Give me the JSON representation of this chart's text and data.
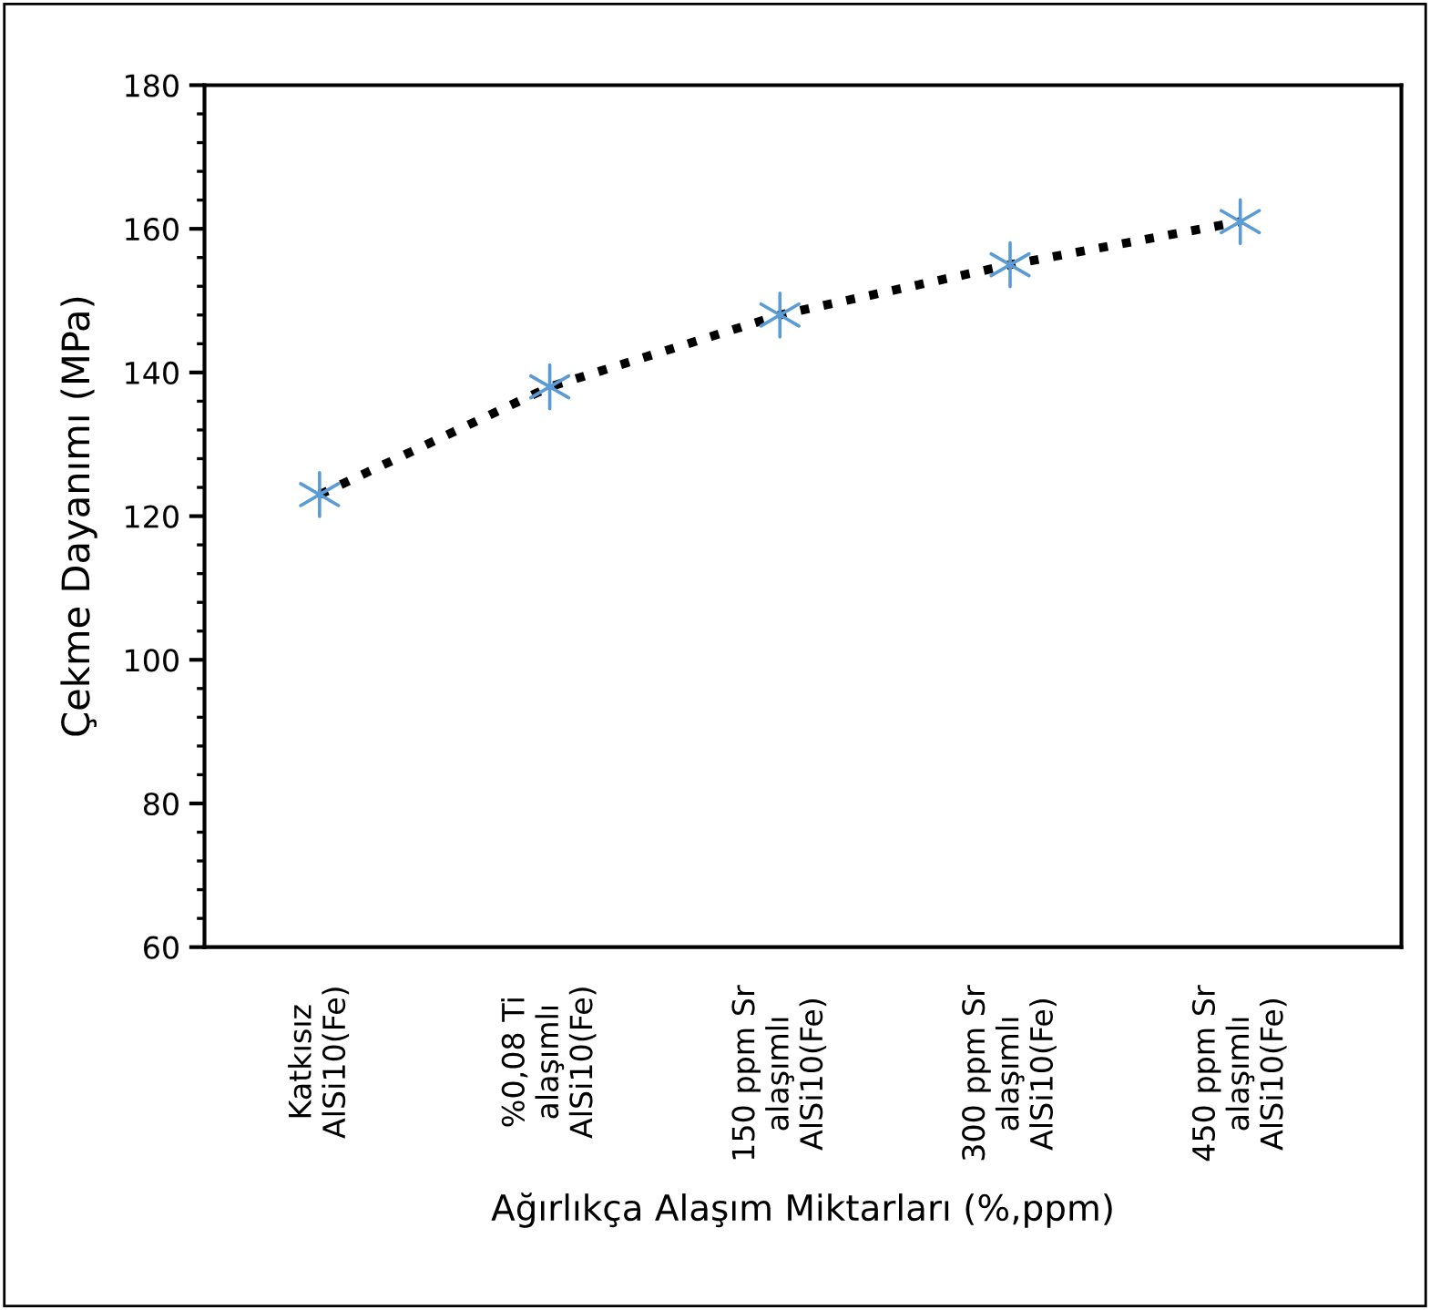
{
  "chart_data": {
    "type": "line",
    "xlabel": "Ağırlıkça Alaşım Miktarları (%,ppm)",
    "ylabel": "Çekme Dayanımı (MPa)",
    "categories": [
      "Katkısız\nAlSi10(Fe)",
      "%0,08 Ti\nalaşımlı\nAlSi10(Fe)",
      "150 ppm Sr\nalaşımlı\nAlSi10(Fe)",
      "300 ppm Sr\nalaşımlı\nAlSi10(Fe)",
      "450 ppm Sr\nalaşımlı\nAlSi10(Fe)"
    ],
    "series": [
      {
        "color": "#000000",
        "line_style": "dotted",
        "marker": "none",
        "values": [
          123,
          138,
          148,
          155,
          161
        ]
      },
      {
        "type": "scatter",
        "color": "#5b9bd5",
        "marker": "cross",
        "values": [
          123,
          138,
          148,
          155,
          161
        ]
      }
    ],
    "ylim": [
      60,
      180
    ],
    "yticks": [
      60,
      80,
      100,
      120,
      140,
      160,
      180
    ],
    "grid": false,
    "legend": false
  }
}
